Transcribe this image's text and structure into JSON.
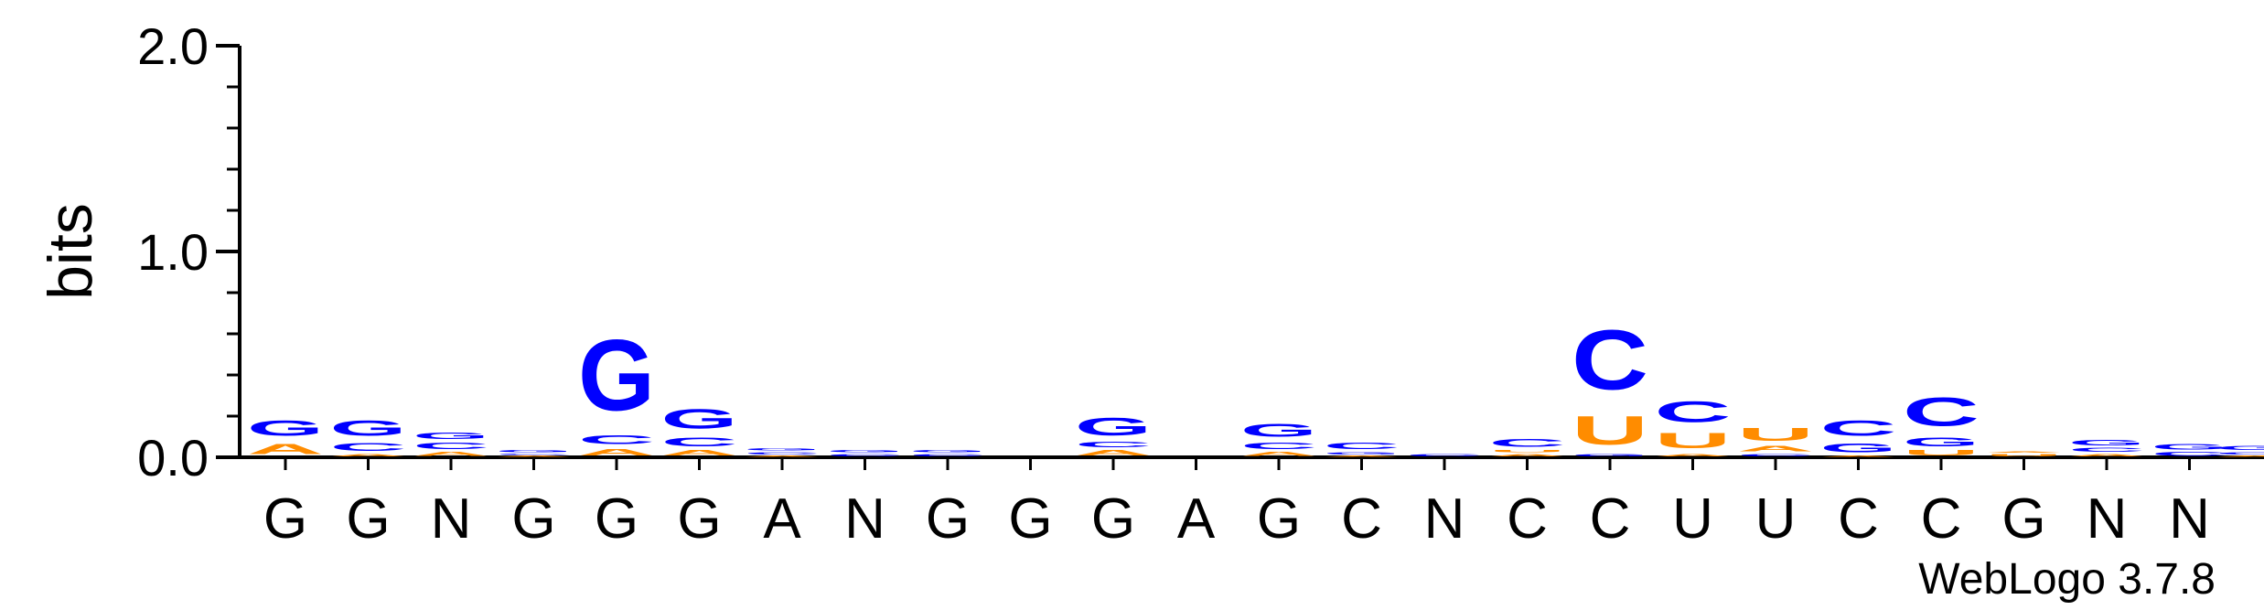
{
  "chart_data": {
    "type": "sequence-logo",
    "title": "",
    "ylabel": "bits",
    "xlabel": "",
    "ylim": [
      0,
      2.0
    ],
    "yticks": [
      "0.0",
      "1.0",
      "2.0"
    ],
    "colors": {
      "G": "#0000ff",
      "C": "#0000ff",
      "A": "#ff8c00",
      "U": "#ff8c00"
    },
    "positions": [
      {
        "consensus": "G",
        "stack": [
          [
            "A",
            0.08
          ],
          [
            "G",
            0.12
          ]
        ]
      },
      {
        "consensus": "G",
        "stack": [
          [
            "A",
            0.02
          ],
          [
            "C",
            0.06
          ],
          [
            "G",
            0.12
          ]
        ]
      },
      {
        "consensus": "N",
        "stack": [
          [
            "A",
            0.03
          ],
          [
            "C",
            0.05
          ],
          [
            "G",
            0.05
          ]
        ]
      },
      {
        "consensus": "G",
        "stack": [
          [
            "A",
            0.01
          ],
          [
            "C",
            0.01
          ],
          [
            "G",
            0.02
          ]
        ]
      },
      {
        "consensus": "G",
        "stack": [
          [
            "A",
            0.05
          ],
          [
            "C",
            0.07
          ],
          [
            "G",
            0.55
          ]
        ]
      },
      {
        "consensus": "G",
        "stack": [
          [
            "A",
            0.04
          ],
          [
            "C",
            0.07
          ],
          [
            "G",
            0.15
          ]
        ]
      },
      {
        "consensus": "A",
        "stack": [
          [
            "A",
            0.01
          ],
          [
            "C",
            0.02
          ],
          [
            "G",
            0.02
          ]
        ]
      },
      {
        "consensus": "N",
        "stack": [
          [
            "C",
            0.02
          ],
          [
            "G",
            0.02
          ]
        ]
      },
      {
        "consensus": "G",
        "stack": [
          [
            "C",
            0.02
          ],
          [
            "G",
            0.02
          ]
        ]
      },
      {
        "consensus": "G",
        "stack": []
      },
      {
        "consensus": "G",
        "stack": [
          [
            "A",
            0.04
          ],
          [
            "C",
            0.04
          ],
          [
            "G",
            0.14
          ]
        ]
      },
      {
        "consensus": "A",
        "stack": []
      },
      {
        "consensus": "G",
        "stack": [
          [
            "A",
            0.03
          ],
          [
            "C",
            0.05
          ],
          [
            "G",
            0.1
          ]
        ]
      },
      {
        "consensus": "C",
        "stack": [
          [
            "A",
            0.01
          ],
          [
            "G",
            0.02
          ],
          [
            "C",
            0.05
          ]
        ]
      },
      {
        "consensus": "N",
        "stack": [
          [
            "C",
            0.02
          ]
        ]
      },
      {
        "consensus": "C",
        "stack": [
          [
            "A",
            0.02
          ],
          [
            "U",
            0.02
          ],
          [
            "C",
            0.06
          ]
        ]
      },
      {
        "consensus": "C",
        "stack": [
          [
            "G",
            0.02
          ],
          [
            "U",
            0.22
          ],
          [
            "C",
            0.46
          ]
        ]
      },
      {
        "consensus": "U",
        "stack": [
          [
            "A",
            0.02
          ],
          [
            "U",
            0.12
          ],
          [
            "C",
            0.16
          ]
        ]
      },
      {
        "consensus": "U",
        "stack": [
          [
            "C",
            0.02
          ],
          [
            "A",
            0.04
          ],
          [
            "U",
            0.1
          ]
        ]
      },
      {
        "consensus": "C",
        "stack": [
          [
            "A",
            0.01
          ],
          [
            "G",
            0.07
          ],
          [
            "C",
            0.12
          ]
        ]
      },
      {
        "consensus": "C",
        "stack": [
          [
            "U",
            0.04
          ],
          [
            "G",
            0.07
          ],
          [
            "C",
            0.22
          ]
        ]
      },
      {
        "consensus": "G",
        "stack": [
          [
            "U",
            0.02
          ],
          [
            "A",
            0.01
          ]
        ]
      },
      {
        "consensus": "N",
        "stack": [
          [
            "A",
            0.02
          ],
          [
            "C",
            0.03
          ],
          [
            "G",
            0.04
          ]
        ]
      },
      {
        "consensus": "N",
        "stack": [
          [
            "C",
            0.03
          ],
          [
            "G",
            0.04
          ]
        ]
      }
    ],
    "trailing_stack": [
      [
        "A",
        0.01
      ],
      [
        "C",
        0.02
      ],
      [
        "G",
        0.03
      ]
    ],
    "credit": "WebLogo 3.7.8"
  }
}
